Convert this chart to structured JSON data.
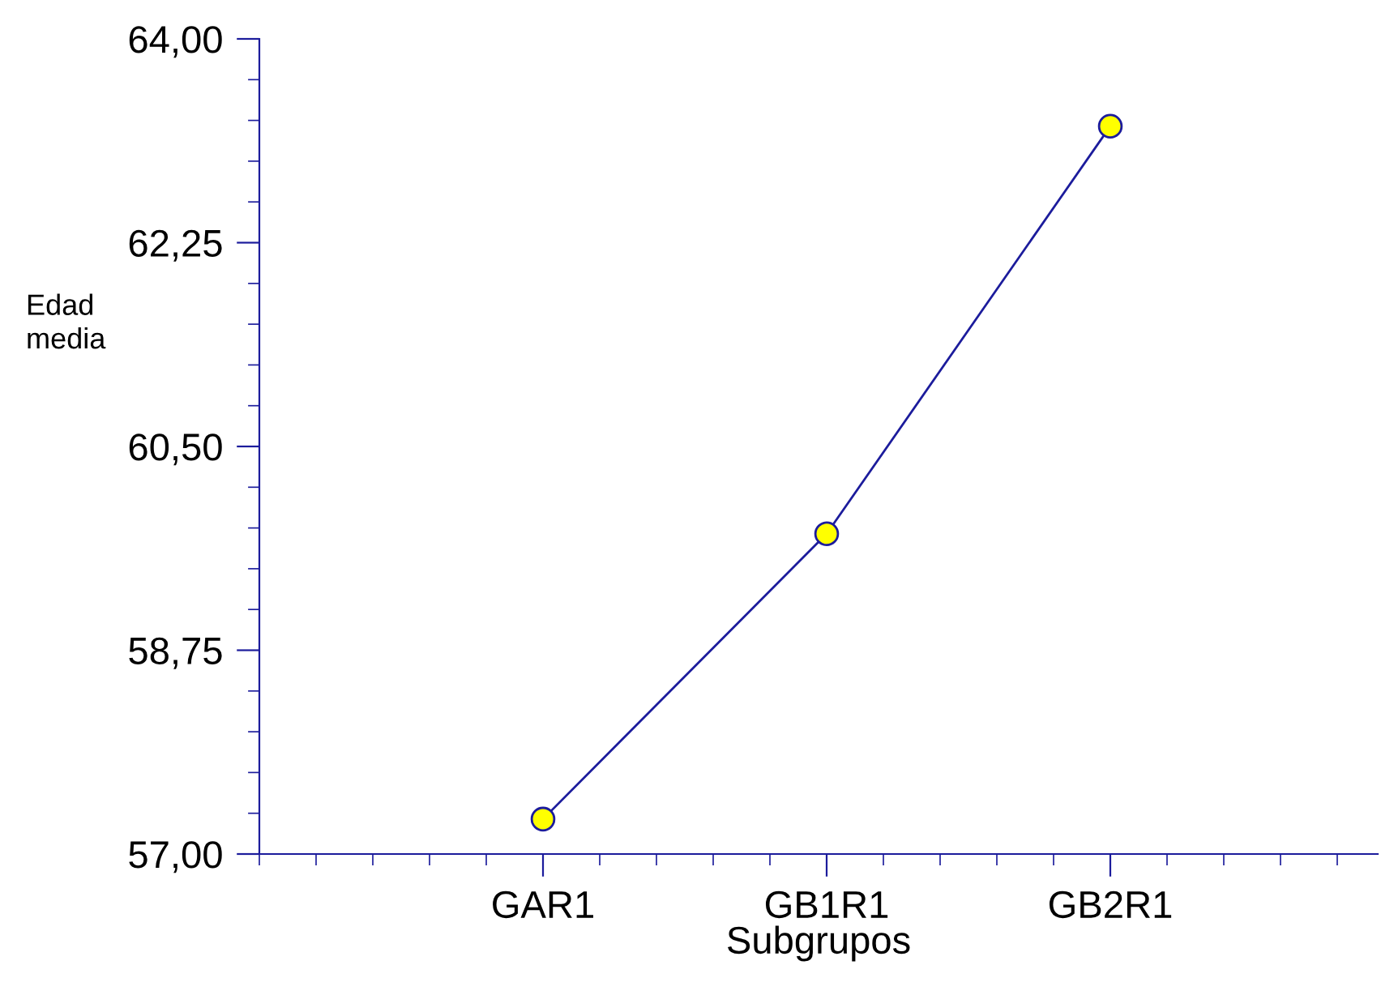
{
  "chart_data": {
    "type": "line",
    "xlabel": "Subgrupos",
    "ylabel": "Edad\nmedia",
    "categories": [
      "GAR1",
      "GB1R1",
      "GB2R1"
    ],
    "series": [
      {
        "color": "#1c1c9c",
        "colors": [
          "#ffff00",
          "#ffff00",
          "#ffff00"
        ],
        "values": [
          57.3,
          59.75,
          63.25
        ]
      }
    ],
    "marker": "circle",
    "ylim": [
      57,
      64
    ],
    "yticks": [
      {
        "value": 57,
        "label": "57,00"
      },
      {
        "value": 58.75,
        "label": "58,75"
      },
      {
        "value": 60.5,
        "label": "60,50"
      },
      {
        "value": 62.25,
        "label": "62,25"
      },
      {
        "value": 64,
        "label": "64,00"
      }
    ],
    "grid": false
  }
}
